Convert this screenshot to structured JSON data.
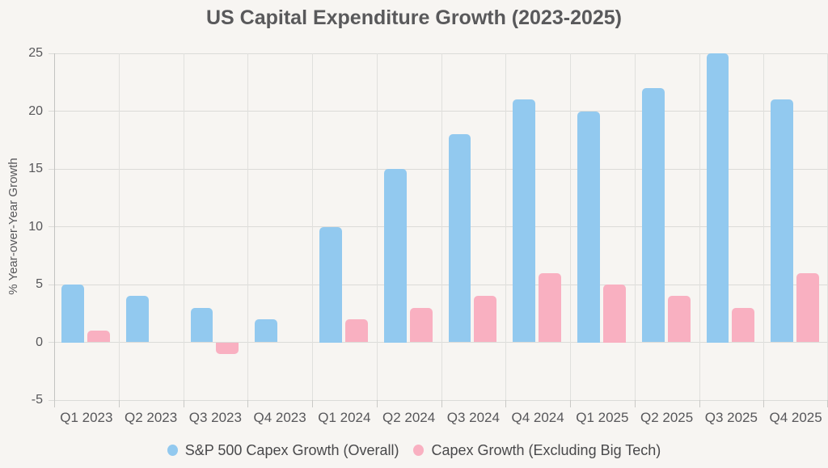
{
  "chart_data": {
    "type": "bar",
    "title": "US Capital Expenditure Growth (2023-2025)",
    "xlabel": "",
    "ylabel": "% Year-over-Year Growth",
    "categories": [
      "Q1 2023",
      "Q2 2023",
      "Q3 2023",
      "Q4 2023",
      "Q1 2024",
      "Q2 2024",
      "Q3 2024",
      "Q4 2024",
      "Q1 2025",
      "Q2 2025",
      "Q3 2025",
      "Q4 2025"
    ],
    "series": [
      {
        "name": "S&P 500 Capex Growth (Overall)",
        "color": "#92c9ef",
        "values": [
          5,
          4,
          3,
          2,
          10,
          15,
          18,
          21,
          20,
          22,
          25,
          21
        ]
      },
      {
        "name": "Capex Growth (Excluding Big Tech)",
        "color": "#f9b0c1",
        "values": [
          1,
          0,
          -1,
          0,
          2,
          3,
          4,
          6,
          5,
          4,
          3,
          6
        ]
      }
    ],
    "ylim": [
      -5,
      25
    ],
    "yticks": [
      -5,
      0,
      5,
      10,
      15,
      20,
      25
    ],
    "grid": true,
    "legend_position": "bottom"
  },
  "colors": {
    "background": "#f7f5f2",
    "gridline": "#dbdbd8",
    "axis_line": "#c3c3c1",
    "text": "#57575a",
    "title_text": "#59595b",
    "series_overall": "#92c9ef",
    "series_ex_bigtech": "#f9b0c1"
  }
}
